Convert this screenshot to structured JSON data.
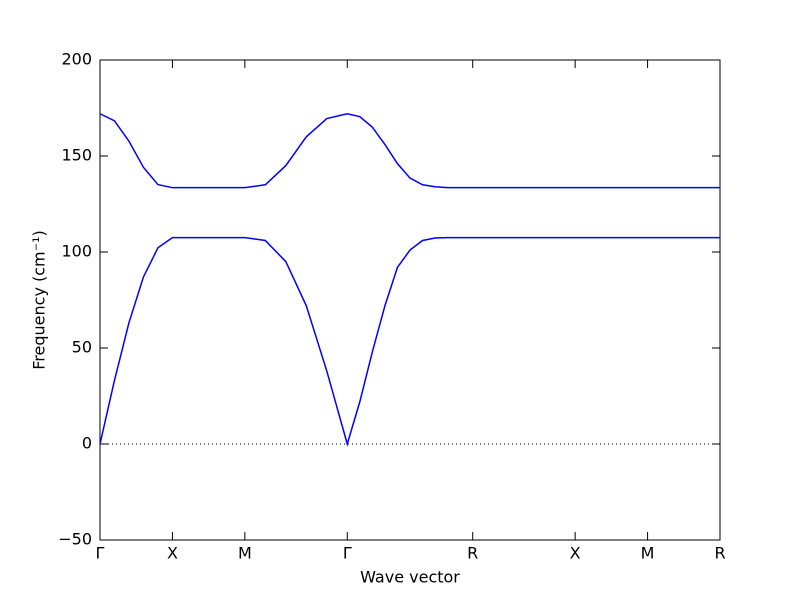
{
  "chart_data": {
    "type": "line",
    "xlabel": "Wave vector",
    "ylabel": "Frequency (cm⁻¹)",
    "x": [
      0,
      0.1,
      0.2,
      0.3,
      0.4,
      0.5,
      0.75,
      1.0,
      1.1414,
      1.2828,
      1.4243,
      1.5657,
      1.7071,
      1.7937,
      1.8803,
      1.9669,
      2.0535,
      2.1401,
      2.2267,
      2.3133,
      2.3999,
      2.5731,
      3.2802,
      3.7802,
      4.2802
    ],
    "series": [
      {
        "color": "#0000ff",
        "values": [
          0,
          33.2,
          63.2,
          87.0,
          102.2,
          107.5,
          107.5,
          107.5,
          106,
          95,
          72,
          38,
          0,
          22,
          48,
          72,
          92,
          101,
          106,
          107.3,
          107.5,
          107.5,
          107.5,
          107.5,
          107.5
        ]
      },
      {
        "color": "#0000ff",
        "values": [
          172,
          168.3,
          157.7,
          144.1,
          135.1,
          133.5,
          133.5,
          133.5,
          135,
          145,
          160,
          169.5,
          172,
          170.5,
          165,
          156,
          146,
          138.5,
          135,
          134,
          133.5,
          133.5,
          133.5,
          133.5,
          133.5
        ]
      }
    ],
    "xlim": [
      0,
      4.2802
    ],
    "xticks": [
      {
        "value": 0,
        "label": "Γ"
      },
      {
        "value": 0.5,
        "label": "X"
      },
      {
        "value": 1.0,
        "label": "M"
      },
      {
        "value": 1.7071,
        "label": "Γ"
      },
      {
        "value": 2.5731,
        "label": "R"
      },
      {
        "value": 3.2802,
        "label": "X"
      },
      {
        "value": 3.7802,
        "label": "M"
      },
      {
        "value": 4.2802,
        "label": "R"
      }
    ],
    "ylim": [
      -50,
      200
    ],
    "yticks": [
      {
        "value": -50,
        "label": "−50"
      },
      0,
      50,
      100,
      150,
      200
    ],
    "zero_line": true
  }
}
